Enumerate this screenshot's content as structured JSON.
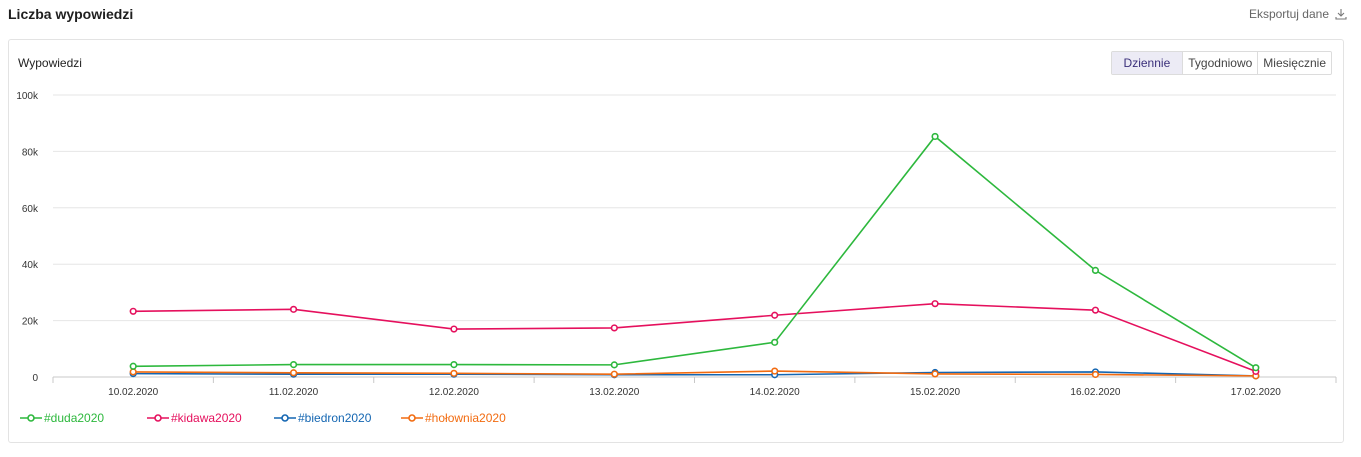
{
  "header": {
    "title": "Liczba wypowiedzi",
    "export_label": "Eksportuj dane"
  },
  "card": {
    "title": "Wypowiedzi",
    "periods": [
      "Dziennie",
      "Tygodniowo",
      "Miesięcznie"
    ],
    "active_period": "Dziennie"
  },
  "chart_data": {
    "type": "line",
    "categories": [
      "10.02.2020",
      "11.02.2020",
      "12.02.2020",
      "13.02.2020",
      "14.02.2020",
      "15.02.2020",
      "16.02.2020",
      "17.02.2020"
    ],
    "ylim": [
      0,
      100000
    ],
    "yticks": [
      0,
      20000,
      40000,
      60000,
      80000,
      100000
    ],
    "ytick_labels": [
      "0",
      "20k",
      "40k",
      "60k",
      "80k",
      "100k"
    ],
    "grid": true,
    "legend_position": "bottom-left",
    "series": [
      {
        "name": "#duda2020",
        "color": "#2db83d",
        "values": [
          3800,
          4400,
          4400,
          4300,
          12300,
          85300,
          37800,
          3300
        ]
      },
      {
        "name": "#kidawa2020",
        "color": "#e5105d",
        "values": [
          23300,
          24000,
          17000,
          17400,
          21900,
          26000,
          23700,
          2000
        ]
      },
      {
        "name": "#biedron2020",
        "color": "#1466b2",
        "values": [
          1200,
          1000,
          1000,
          800,
          800,
          1600,
          1800,
          400
        ]
      },
      {
        "name": "#hołownia2020",
        "color": "#f26b10",
        "values": [
          1800,
          1500,
          1300,
          1000,
          2100,
          1100,
          900,
          400
        ]
      }
    ]
  }
}
